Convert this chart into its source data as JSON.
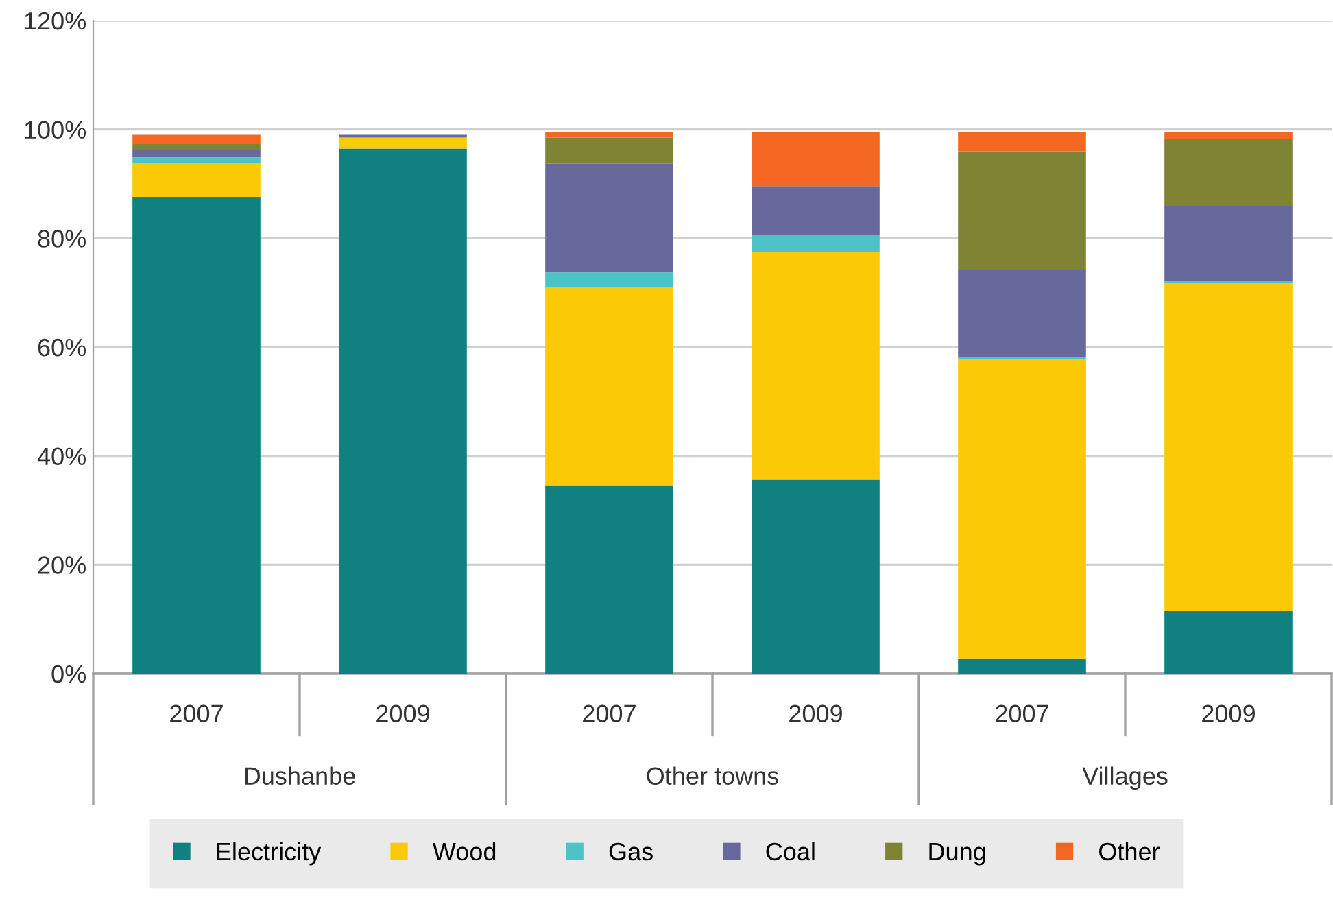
{
  "chart_data": {
    "type": "bar",
    "stacked": true,
    "categories": [
      "2007",
      "2009",
      "2007",
      "2009",
      "2007",
      "2009"
    ],
    "annotations": [
      "Dushanbe",
      "Other towns",
      "Villages"
    ],
    "series": [
      {
        "name": "Electricity",
        "color": "#108080",
        "values": [
          87.6,
          96.5,
          34.6,
          35.6,
          2.8,
          11.6
        ]
      },
      {
        "name": "Wood",
        "color": "#fcc907",
        "values": [
          6.2,
          2.0,
          36.4,
          41.9,
          55.0,
          60.1
        ]
      },
      {
        "name": "Gas",
        "color": "#4cc3c6",
        "values": [
          1.1,
          0,
          2.7,
          3.1,
          0.3,
          0.5
        ]
      },
      {
        "name": "Coal",
        "color": "#67689b",
        "values": [
          1.3,
          0.5,
          20.0,
          9.0,
          16.1,
          13.7
        ]
      },
      {
        "name": "Dung",
        "color": "#7f8334",
        "values": [
          1.1,
          0,
          4.8,
          0,
          21.8,
          12.3
        ]
      },
      {
        "name": "Other",
        "color": "#f46722",
        "values": [
          1.7,
          0,
          1.0,
          9.9,
          3.5,
          1.3
        ]
      }
    ],
    "ylim": [
      0,
      120
    ],
    "yticks": [
      {
        "value": 0,
        "label": "0%"
      },
      {
        "value": 20,
        "label": "20%"
      },
      {
        "value": 40,
        "label": "40%"
      },
      {
        "value": 60,
        "label": "60%"
      },
      {
        "value": 80,
        "label": "80%"
      },
      {
        "value": 100,
        "label": "100%"
      },
      {
        "value": 120,
        "label": "120%"
      }
    ],
    "grid": "y",
    "legend": "bottom"
  }
}
